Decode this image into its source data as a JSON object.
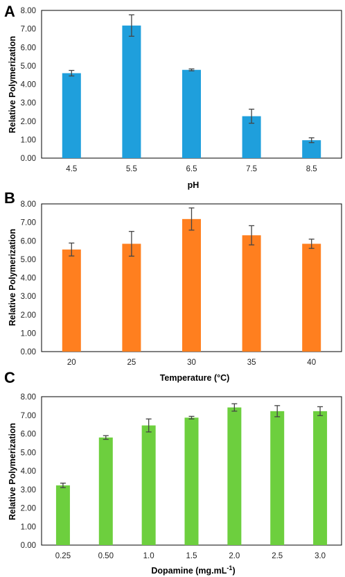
{
  "panels": [
    {
      "label": "A"
    },
    {
      "label": "B"
    },
    {
      "label": "C"
    }
  ],
  "chart_data": [
    {
      "type": "bar",
      "title": "",
      "xlabel": "pH",
      "ylabel": "Relative Polymerization",
      "categories": [
        "4.5",
        "5.5",
        "6.5",
        "7.5",
        "8.5"
      ],
      "values": [
        4.6,
        7.18,
        4.78,
        2.27,
        0.97
      ],
      "errors": [
        0.15,
        0.58,
        0.05,
        0.38,
        0.13
      ],
      "ylim": [
        0,
        8
      ],
      "yticks": [
        "0.00",
        "1.00",
        "2.00",
        "3.00",
        "4.00",
        "5.00",
        "6.00",
        "7.00",
        "8.00"
      ],
      "color": "#1f9fdc",
      "grid": false
    },
    {
      "type": "bar",
      "title": "",
      "xlabel": "Temperature (°C)",
      "ylabel": "Relative Polymerization",
      "categories": [
        "20",
        "25",
        "30",
        "35",
        "40"
      ],
      "values": [
        5.53,
        5.84,
        7.18,
        6.3,
        5.84
      ],
      "errors": [
        0.35,
        0.67,
        0.6,
        0.52,
        0.25
      ],
      "ylim": [
        0,
        8
      ],
      "yticks": [
        "0.00",
        "1.00",
        "2.00",
        "3.00",
        "4.00",
        "5.00",
        "6.00",
        "7.00",
        "8.00"
      ],
      "color": "#ff7f1f",
      "grid": false
    },
    {
      "type": "bar",
      "title": "",
      "xlabel": "Dopamine (mg.mL",
      "xlabel_sup": "-1",
      "xlabel_end": ")",
      "ylabel": "Relative Polymerization",
      "categories": [
        "0.25",
        "0.50",
        "1.0",
        "1.5",
        "2.0",
        "2.5",
        "3.0"
      ],
      "values": [
        3.22,
        5.8,
        6.45,
        6.87,
        7.42,
        7.22,
        7.22
      ],
      "errors": [
        0.12,
        0.1,
        0.35,
        0.07,
        0.2,
        0.3,
        0.24
      ],
      "ylim": [
        0,
        8
      ],
      "yticks": [
        "0.00",
        "1.00",
        "2.00",
        "3.00",
        "4.00",
        "5.00",
        "6.00",
        "7.00",
        "8.00"
      ],
      "color": "#6dcf3e",
      "grid": false
    }
  ]
}
